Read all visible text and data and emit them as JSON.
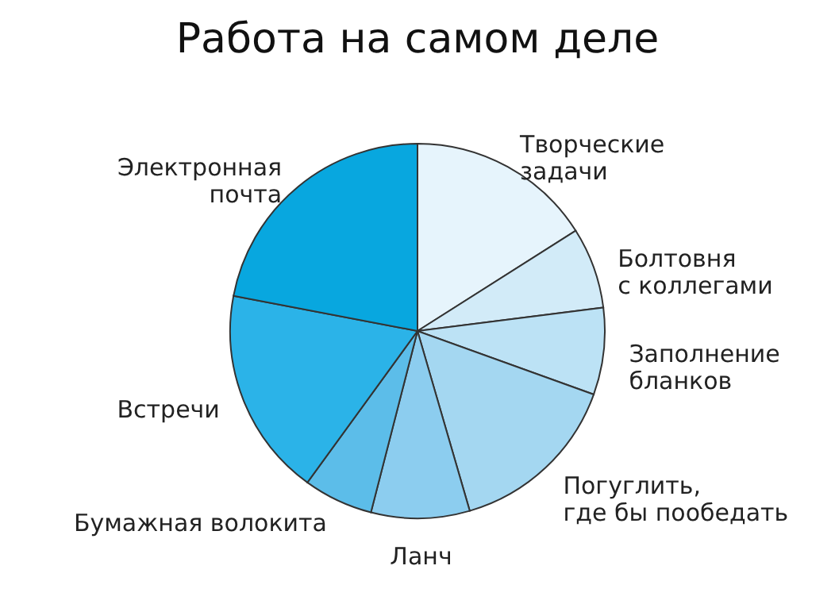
{
  "chart_data": {
    "type": "pie",
    "title": "Работа на самом деле",
    "categories": [
      "Творческие\nзадачи",
      "Болтовня\nс коллегами",
      "Заполнение\nбланков",
      "Погуглить,\nгде бы пообедать",
      "Ланч",
      "Бумажная волокита",
      "Встречи",
      "Электронная\nпочта"
    ],
    "values": [
      16,
      7,
      7.5,
      15,
      8.5,
      6,
      18,
      22
    ],
    "colors": [
      "#e6f4fc",
      "#d2ebf8",
      "#bce2f5",
      "#a4d7f1",
      "#8ccdef",
      "#5cbde9",
      "#2bb3e8",
      "#08a7df"
    ]
  }
}
